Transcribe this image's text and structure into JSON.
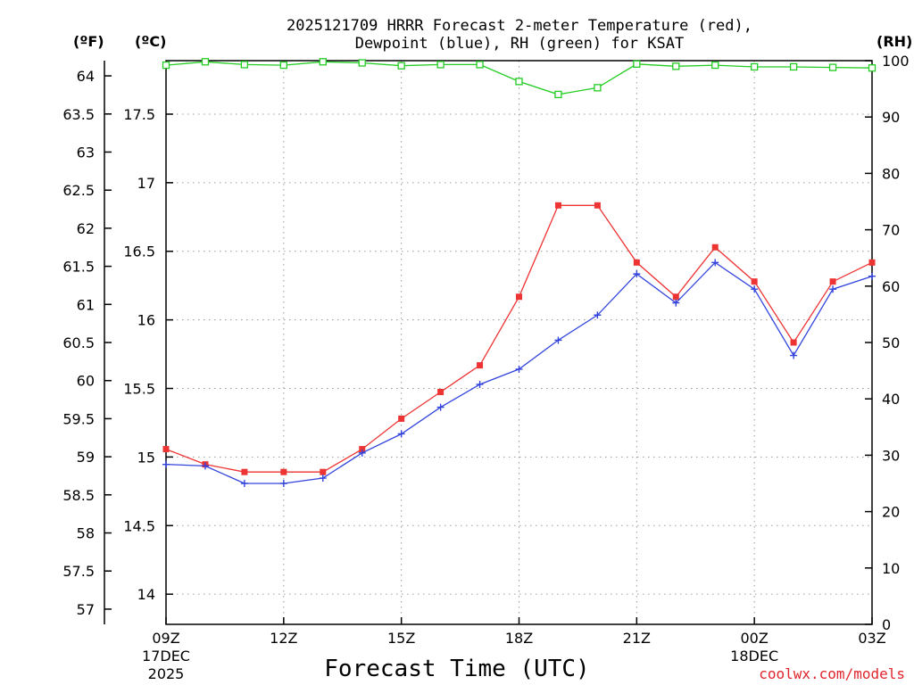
{
  "chart_data": {
    "type": "line",
    "title_line1": "2025121709 HRRR Forecast 2-meter Temperature (red),",
    "title_line2": "Dewpoint (blue), RH (green) for KSAT",
    "xlabel": "Forecast Time (UTC)",
    "credit": "coolwx.com/models",
    "left_axis_f": {
      "unit_label": "(ºF)",
      "range": [
        56.8,
        64.2
      ],
      "ticks": [
        "57",
        "57.5",
        "58",
        "58.5",
        "59",
        "59.5",
        "60",
        "60.5",
        "61",
        "61.5",
        "62",
        "62.5",
        "63",
        "63.5",
        "64"
      ]
    },
    "left_axis_c": {
      "unit_label": "(ºC)",
      "range": [
        13.78,
        17.89
      ],
      "ticks": [
        "14",
        "14.5",
        "15",
        "15.5",
        "16",
        "16.5",
        "17",
        "17.5"
      ]
    },
    "right_axis_rh": {
      "unit_label": "(RH)",
      "range": [
        0,
        100
      ],
      "ticks": [
        "0",
        "10",
        "20",
        "30",
        "40",
        "50",
        "60",
        "70",
        "80",
        "90",
        "100"
      ]
    },
    "x_hours": [
      0,
      1,
      2,
      3,
      4,
      5,
      6,
      7,
      8,
      9,
      10,
      11,
      12,
      13,
      14,
      15,
      16,
      17,
      18
    ],
    "x_ticks": [
      {
        "hour": 0,
        "label": "09Z",
        "sub1": "17DEC",
        "sub2": "2025"
      },
      {
        "hour": 3,
        "label": "12Z",
        "sub1": "",
        "sub2": ""
      },
      {
        "hour": 6,
        "label": "15Z",
        "sub1": "",
        "sub2": ""
      },
      {
        "hour": 9,
        "label": "18Z",
        "sub1": "",
        "sub2": ""
      },
      {
        "hour": 12,
        "label": "21Z",
        "sub1": "",
        "sub2": ""
      },
      {
        "hour": 15,
        "label": "00Z",
        "sub1": "18DEC",
        "sub2": ""
      },
      {
        "hour": 18,
        "label": "03Z",
        "sub1": "",
        "sub2": ""
      }
    ],
    "series": [
      {
        "name": "Temperature",
        "axis": "F",
        "color": "#ee3333",
        "marker": "filled-square",
        "values": [
          59.1,
          58.9,
          58.8,
          58.8,
          58.8,
          59.1,
          59.5,
          59.85,
          60.2,
          61.1,
          62.3,
          62.3,
          61.55,
          61.1,
          61.75,
          61.3,
          60.5,
          61.3,
          61.55
        ]
      },
      {
        "name": "Dewpoint",
        "axis": "F",
        "color": "#3344dd",
        "marker": "plus",
        "values": [
          58.9,
          58.88,
          58.65,
          58.65,
          58.72,
          59.05,
          59.3,
          59.65,
          59.95,
          60.15,
          60.53,
          60.86,
          61.4,
          61.02,
          61.55,
          61.2,
          60.33,
          61.2,
          61.37
        ]
      },
      {
        "name": "RH",
        "axis": "RH",
        "color": "#22cc22",
        "marker": "open-square",
        "values": [
          99.2,
          99.8,
          99.3,
          99.2,
          99.8,
          99.6,
          99.1,
          99.3,
          99.3,
          96.3,
          94,
          95.2,
          99.4,
          99,
          99.2,
          98.9,
          98.9,
          98.8,
          98.7
        ]
      }
    ]
  }
}
